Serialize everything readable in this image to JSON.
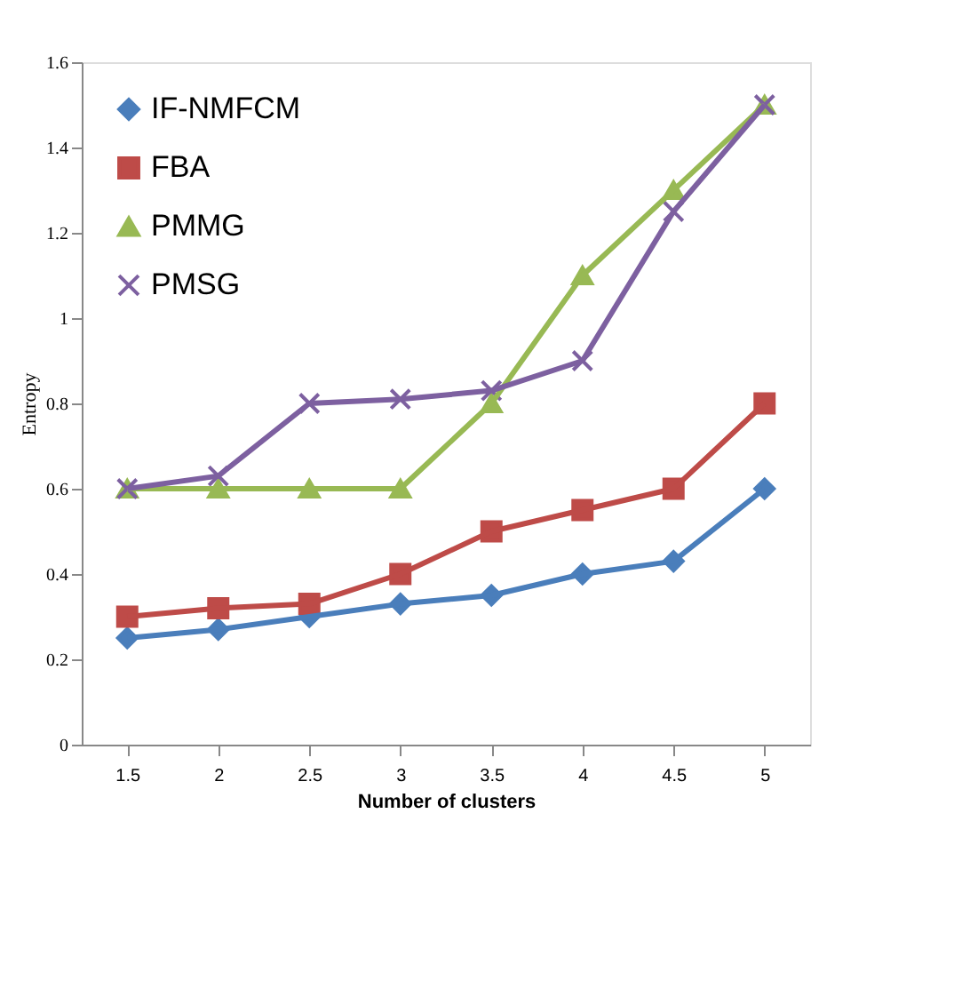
{
  "chart_data": {
    "type": "line",
    "xlabel": "Number of clusters",
    "ylabel": "Entropy",
    "categories": [
      "1.5",
      "2",
      "2.5",
      "3",
      "3.5",
      "4",
      "4.5",
      "5"
    ],
    "ylim": [
      0,
      1.6
    ],
    "yticks": [
      0,
      0.2,
      0.4,
      0.6,
      0.8,
      1,
      1.2,
      1.4,
      1.6
    ],
    "grid": false,
    "legend": "top left",
    "line_style": "solid",
    "series": [
      {
        "name": "IF-NMFCM",
        "color": "#4a7ebb",
        "marker": "diamond",
        "values": [
          0.25,
          0.27,
          0.3,
          0.33,
          0.35,
          0.4,
          0.43,
          0.6
        ]
      },
      {
        "name": "FBA",
        "color": "#be4b48",
        "marker": "square",
        "values": [
          0.3,
          0.32,
          0.33,
          0.4,
          0.5,
          0.55,
          0.6,
          0.8
        ]
      },
      {
        "name": "PMMG",
        "color": "#98b954",
        "marker": "triangle",
        "values": [
          0.6,
          0.6,
          0.6,
          0.6,
          0.8,
          1.1,
          1.3,
          1.5
        ]
      },
      {
        "name": "PMSG",
        "color": "#7d60a0",
        "marker": "cross",
        "values": [
          0.6,
          0.63,
          0.8,
          0.81,
          0.83,
          0.9,
          1.25,
          1.5
        ]
      }
    ]
  }
}
